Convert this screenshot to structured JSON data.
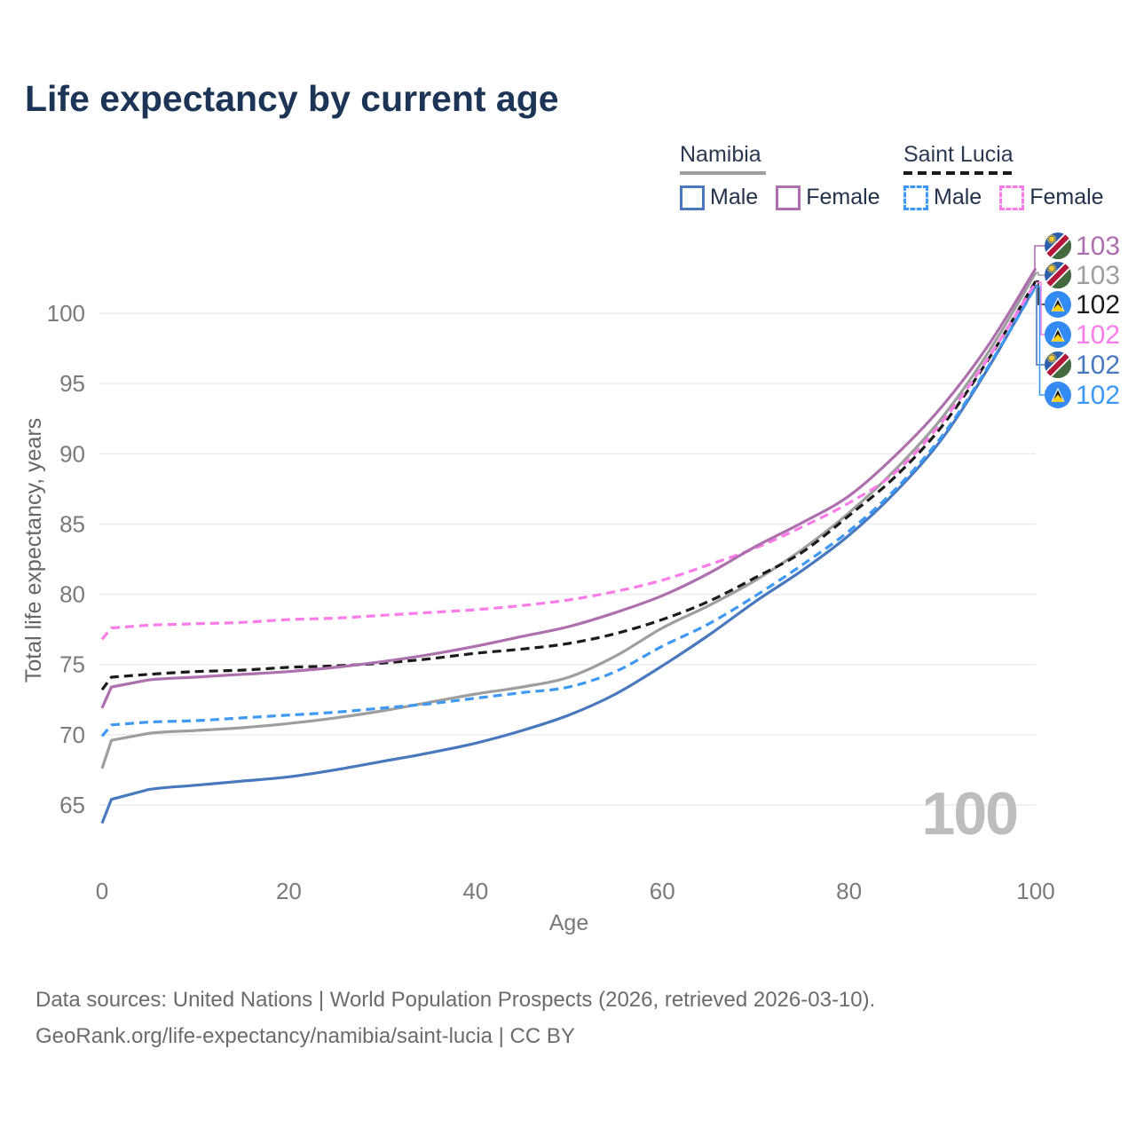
{
  "header": {
    "title": "Life expectancy by current age"
  },
  "legend": {
    "groups": [
      {
        "label": "Namibia",
        "style": "solid",
        "underline_color": "#9e9e9e",
        "items": [
          {
            "label": "Male",
            "series": "Namibia Male"
          },
          {
            "label": "Female",
            "series": "Namibia Female"
          }
        ]
      },
      {
        "label": "Saint Lucia",
        "style": "dashed",
        "underline_color": "#1a1a1a",
        "items": [
          {
            "label": "Male",
            "series": "Saint Lucia Male"
          },
          {
            "label": "Female",
            "series": "Saint Lucia Female"
          }
        ]
      }
    ]
  },
  "watermark": "100",
  "footer": {
    "line1": "Data sources: United Nations | World Population Prospects (2026, retrieved 2026-03-10).",
    "line2": "GeoRank.org/life-expectancy/namibia/saint-lucia | CC BY"
  },
  "chart_data": {
    "type": "line",
    "title": "Life expectancy by current age",
    "xlabel": "Age",
    "ylabel": "Total life expectancy, years",
    "x_ticks": [
      0,
      20,
      40,
      60,
      80,
      100
    ],
    "y_ticks": [
      65,
      70,
      75,
      80,
      85,
      90,
      95,
      100
    ],
    "xlim": [
      0,
      100
    ],
    "ylim": [
      63,
      104
    ],
    "grid": true,
    "legend_position": "top-right",
    "ages": [
      0,
      1,
      5,
      10,
      15,
      20,
      25,
      30,
      35,
      40,
      45,
      50,
      55,
      60,
      65,
      70,
      75,
      80,
      85,
      90,
      95,
      100
    ],
    "series": [
      {
        "name": "Namibia Female",
        "country": "namibia",
        "sex": "female",
        "color": "#ad6fad",
        "style": "solid",
        "end_label": "103",
        "values": [
          71.9,
          73.4,
          73.9,
          74.1,
          74.3,
          74.5,
          74.8,
          75.2,
          75.7,
          76.3,
          77.0,
          77.7,
          78.7,
          79.9,
          81.5,
          83.4,
          85.1,
          87.0,
          89.9,
          93.4,
          97.8,
          103.2
        ]
      },
      {
        "name": "Namibia",
        "country": "namibia",
        "sex": "both",
        "color": "#9e9e9e",
        "style": "solid",
        "end_label": "103",
        "values": [
          67.6,
          69.6,
          70.1,
          70.3,
          70.5,
          70.8,
          71.2,
          71.7,
          72.3,
          72.9,
          73.4,
          74.1,
          75.6,
          77.6,
          79.2,
          81.0,
          83.2,
          85.8,
          88.9,
          92.6,
          97.3,
          102.9
        ]
      },
      {
        "name": "Saint Lucia",
        "country": "saint-lucia",
        "sex": "both",
        "color": "#1a1a1a",
        "style": "dashed",
        "end_label": "102",
        "values": [
          73.2,
          74.1,
          74.3,
          74.5,
          74.6,
          74.8,
          74.9,
          75.1,
          75.4,
          75.8,
          76.1,
          76.5,
          77.2,
          78.2,
          79.5,
          81.2,
          83.0,
          85.6,
          88.4,
          92.0,
          96.8,
          102.3
        ]
      },
      {
        "name": "Saint Lucia Female",
        "country": "saint-lucia",
        "sex": "female",
        "color": "#fb7ce8",
        "style": "dashed",
        "end_label": "102",
        "values": [
          76.8,
          77.6,
          77.8,
          77.9,
          78.0,
          78.2,
          78.3,
          78.5,
          78.7,
          78.9,
          79.2,
          79.6,
          80.2,
          81.0,
          82.1,
          83.3,
          84.8,
          86.5,
          88.7,
          92.3,
          96.9,
          102.2
        ]
      },
      {
        "name": "Namibia Male",
        "country": "namibia",
        "sex": "male",
        "color": "#4878be",
        "style": "solid",
        "end_label": "102",
        "values": [
          63.7,
          65.4,
          66.1,
          66.4,
          66.7,
          67.0,
          67.5,
          68.1,
          68.7,
          69.4,
          70.3,
          71.4,
          72.9,
          74.9,
          77.1,
          79.5,
          81.7,
          84.2,
          87.3,
          91.1,
          96.2,
          102.0
        ]
      },
      {
        "name": "Saint Lucia Male",
        "country": "saint-lucia",
        "sex": "male",
        "color": "#3d99f5",
        "style": "dashed",
        "end_label": "102",
        "values": [
          69.9,
          70.7,
          70.9,
          71.0,
          71.2,
          71.4,
          71.6,
          71.9,
          72.2,
          72.6,
          73.0,
          73.4,
          74.5,
          76.3,
          77.9,
          79.9,
          82.1,
          84.5,
          87.5,
          91.3,
          96.3,
          101.9
        ]
      }
    ]
  }
}
